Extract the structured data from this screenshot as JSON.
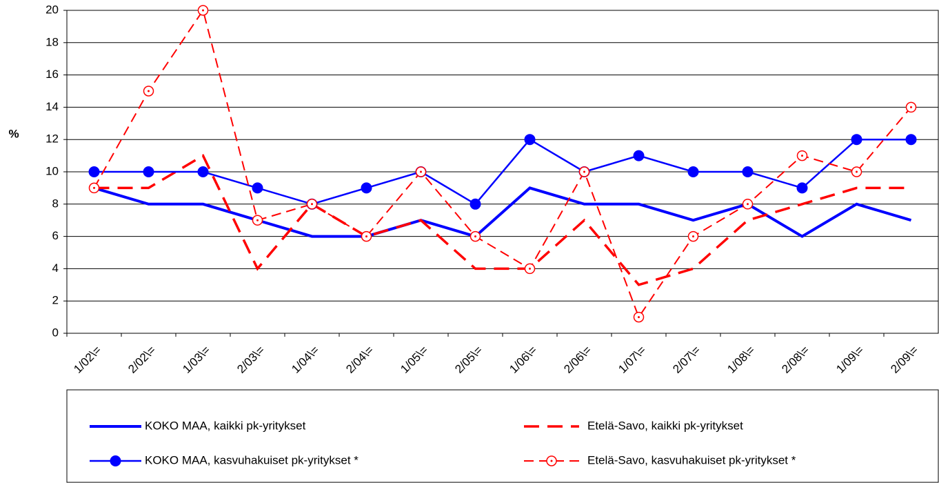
{
  "chart_data": {
    "type": "line",
    "y_label": "%",
    "categories": [
      "1/02\\=",
      "2/02\\=",
      "1/03\\=",
      "2/03\\=",
      "1/04\\=",
      "2/04\\=",
      "1/05\\=",
      "2/05\\=",
      "1/06\\=",
      "2/06\\=",
      "1/07\\=",
      "2/07\\=",
      "1/08\\=",
      "2/08\\=",
      "1/09\\=",
      "2/09\\="
    ],
    "series": [
      {
        "name": "KOKO MAA, kaikki pk-yritykset",
        "color": "#0000ff",
        "dashed": false,
        "marker": "none",
        "values": [
          9,
          8,
          8,
          7,
          6,
          6,
          7,
          6,
          9,
          8,
          8,
          7,
          8,
          6,
          8,
          7
        ]
      },
      {
        "name": "Etelä-Savo, kaikki pk-yritykset",
        "color": "#ff0000",
        "dashed": true,
        "marker": "none",
        "values": [
          9,
          9,
          11,
          4,
          8,
          6,
          7,
          4,
          4,
          7,
          3,
          4,
          7,
          8,
          9,
          9
        ]
      },
      {
        "name": "KOKO MAA, kasvuhakuiset pk-yritykset *",
        "color": "#0000ff",
        "dashed": false,
        "marker": "filled",
        "values": [
          10,
          10,
          10,
          9,
          8,
          9,
          10,
          8,
          12,
          10,
          11,
          10,
          10,
          9,
          12,
          12
        ]
      },
      {
        "name": "Etelä-Savo, kasvuhakuiset pk-yritykset *",
        "color": "#ff0000",
        "dashed": true,
        "marker": "open",
        "values": [
          9,
          15,
          20,
          7,
          8,
          6,
          10,
          6,
          4,
          10,
          1,
          6,
          8,
          11,
          10,
          14
        ]
      }
    ],
    "ylim": [
      0,
      20
    ],
    "yticks": [
      0,
      2,
      4,
      6,
      8,
      10,
      12,
      14,
      16,
      18,
      20
    ],
    "grid": true
  }
}
